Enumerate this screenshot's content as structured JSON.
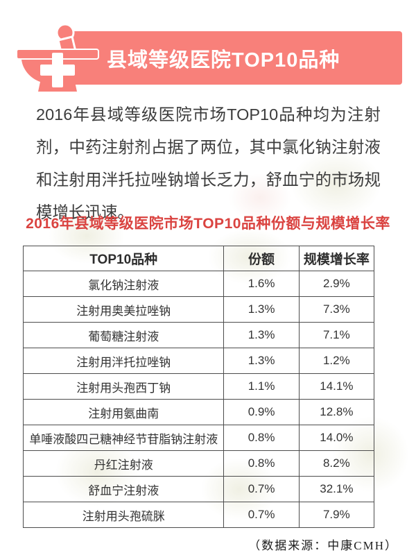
{
  "header": {
    "title": "县域等级医院TOP10品种",
    "banner_color": "#f8807a",
    "icon": "mortar-pestle-with-cross"
  },
  "intro": {
    "text": "2016年县域等级医院市场TOP10品种均为注射剂，中药注射剂占据了两位，其中氯化钠注射液和注射用泮托拉唑钠增长乏力，舒血宁的市场规模增长迅速。"
  },
  "table": {
    "title": "2016年县域等级医院市场TOP10品种份额与规模增长率",
    "title_color": "#da4340",
    "columns": [
      "TOP10品种",
      "份额",
      "规模增长率"
    ],
    "rows": [
      {
        "name": "氯化钠注射液",
        "share": "1.6%",
        "growth": "2.9%"
      },
      {
        "name": "注射用奥美拉唑钠",
        "share": "1.3%",
        "growth": "7.3%"
      },
      {
        "name": "葡萄糖注射液",
        "share": "1.3%",
        "growth": "7.1%"
      },
      {
        "name": "注射用泮托拉唑钠",
        "share": "1.3%",
        "growth": "1.2%"
      },
      {
        "name": "注射用头孢西丁钠",
        "share": "1.1%",
        "growth": "14.1%"
      },
      {
        "name": "注射用氨曲南",
        "share": "0.9%",
        "growth": "12.8%"
      },
      {
        "name": "单唾液酸四己糖神经节苷脂钠注射液",
        "share": "0.8%",
        "growth": "14.0%"
      },
      {
        "name": "丹红注射液",
        "share": "0.8%",
        "growth": "8.2%"
      },
      {
        "name": "舒血宁注射液",
        "share": "0.7%",
        "growth": "32.1%"
      },
      {
        "name": "注射用头孢硫脒",
        "share": "0.7%",
        "growth": "7.9%"
      }
    ]
  },
  "footer": {
    "source": "（数据来源：中康CMH）"
  },
  "chart_data": {
    "type": "table",
    "title": "2016年县域等级医院市场TOP10品种份额与规模增长率",
    "columns": [
      "TOP10品种",
      "份额",
      "规模增长率"
    ],
    "rows": [
      [
        "氯化钠注射液",
        "1.6%",
        "2.9%"
      ],
      [
        "注射用奥美拉唑钠",
        "1.3%",
        "7.3%"
      ],
      [
        "葡萄糖注射液",
        "1.3%",
        "7.1%"
      ],
      [
        "注射用泮托拉唑钠",
        "1.3%",
        "1.2%"
      ],
      [
        "注射用头孢西丁钠",
        "1.1%",
        "14.1%"
      ],
      [
        "注射用氨曲南",
        "0.9%",
        "12.8%"
      ],
      [
        "单唾液酸四己糖神经节苷脂钠注射液",
        "0.8%",
        "14.0%"
      ],
      [
        "丹红注射液",
        "0.8%",
        "8.2%"
      ],
      [
        "舒血宁注射液",
        "0.7%",
        "32.1%"
      ],
      [
        "注射用头孢硫脒",
        "0.7%",
        "7.9%"
      ]
    ],
    "source": "中康CMH",
    "units": {
      "份额": "percent of market",
      "规模增长率": "percent growth"
    }
  }
}
